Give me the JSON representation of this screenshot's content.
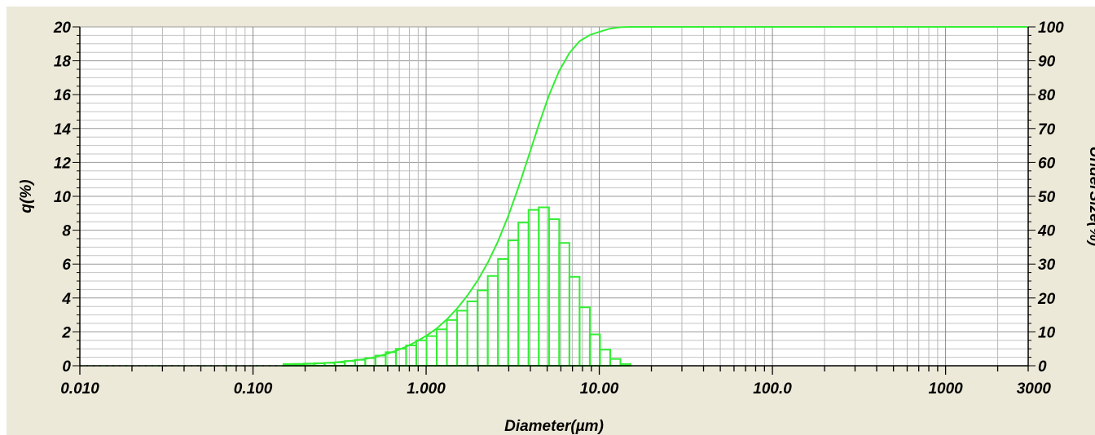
{
  "chart_data": {
    "type": "bar",
    "xlabel": "Diameter(µm)",
    "ylabel": "q(%)",
    "y2label": "UnderSize(%)",
    "xscale": "log",
    "xlim": [
      0.01,
      3000
    ],
    "ylim": [
      0,
      20
    ],
    "y2lim": [
      0,
      100
    ],
    "xticks": [
      {
        "value": 0.01,
        "label": "0.010"
      },
      {
        "value": 0.1,
        "label": "0.100"
      },
      {
        "value": 1,
        "label": "1.000"
      },
      {
        "value": 10,
        "label": "10.00"
      },
      {
        "value": 100,
        "label": "100.0"
      },
      {
        "value": 1000,
        "label": "1000"
      },
      {
        "value": 3000,
        "label": "3000"
      }
    ],
    "yticks": [
      {
        "value": 0,
        "label": "0"
      },
      {
        "value": 2,
        "label": "2"
      },
      {
        "value": 4,
        "label": "4"
      },
      {
        "value": 6,
        "label": "6"
      },
      {
        "value": 8,
        "label": "8"
      },
      {
        "value": 10,
        "label": "10"
      },
      {
        "value": 12,
        "label": "12"
      },
      {
        "value": 14,
        "label": "14"
      },
      {
        "value": 16,
        "label": "16"
      },
      {
        "value": 18,
        "label": "18"
      },
      {
        "value": 20,
        "label": "20"
      }
    ],
    "y2ticks": [
      {
        "value": 0,
        "label": "0"
      },
      {
        "value": 10,
        "label": "10"
      },
      {
        "value": 20,
        "label": "20"
      },
      {
        "value": 30,
        "label": "30"
      },
      {
        "value": 40,
        "label": "40"
      },
      {
        "value": 50,
        "label": "50"
      },
      {
        "value": 60,
        "label": "60"
      },
      {
        "value": 70,
        "label": "70"
      },
      {
        "value": 80,
        "label": "80"
      },
      {
        "value": 90,
        "label": "90"
      },
      {
        "value": 100,
        "label": "100"
      }
    ],
    "grid": true,
    "series": [
      {
        "type": "histogram",
        "axis": "left",
        "color": "#33ee33",
        "bins": [
          {
            "lo": 0.15,
            "hi": 0.172,
            "q": 0.1
          },
          {
            "lo": 0.172,
            "hi": 0.197,
            "q": 0.11
          },
          {
            "lo": 0.197,
            "hi": 0.226,
            "q": 0.13
          },
          {
            "lo": 0.226,
            "hi": 0.259,
            "q": 0.15
          },
          {
            "lo": 0.259,
            "hi": 0.296,
            "q": 0.17
          },
          {
            "lo": 0.296,
            "hi": 0.339,
            "q": 0.2
          },
          {
            "lo": 0.339,
            "hi": 0.389,
            "q": 0.28
          },
          {
            "lo": 0.389,
            "hi": 0.445,
            "q": 0.35
          },
          {
            "lo": 0.445,
            "hi": 0.51,
            "q": 0.45
          },
          {
            "lo": 0.51,
            "hi": 0.584,
            "q": 0.6
          },
          {
            "lo": 0.584,
            "hi": 0.669,
            "q": 0.8
          },
          {
            "lo": 0.669,
            "hi": 0.766,
            "q": 1.0
          },
          {
            "lo": 0.766,
            "hi": 0.877,
            "q": 1.2
          },
          {
            "lo": 0.877,
            "hi": 1.005,
            "q": 1.5
          },
          {
            "lo": 1.005,
            "hi": 1.151,
            "q": 1.75
          },
          {
            "lo": 1.151,
            "hi": 1.318,
            "q": 2.15
          },
          {
            "lo": 1.318,
            "hi": 1.51,
            "q": 2.7
          },
          {
            "lo": 1.51,
            "hi": 1.729,
            "q": 3.25
          },
          {
            "lo": 1.729,
            "hi": 1.981,
            "q": 3.8
          },
          {
            "lo": 1.981,
            "hi": 2.269,
            "q": 4.45
          },
          {
            "lo": 2.269,
            "hi": 2.599,
            "q": 5.3
          },
          {
            "lo": 2.599,
            "hi": 2.976,
            "q": 6.3
          },
          {
            "lo": 2.976,
            "hi": 3.409,
            "q": 7.4
          },
          {
            "lo": 3.409,
            "hi": 3.905,
            "q": 8.45
          },
          {
            "lo": 3.905,
            "hi": 4.472,
            "q": 9.2
          },
          {
            "lo": 4.472,
            "hi": 5.122,
            "q": 9.35
          },
          {
            "lo": 5.122,
            "hi": 5.867,
            "q": 8.65
          },
          {
            "lo": 5.867,
            "hi": 6.72,
            "q": 7.25
          },
          {
            "lo": 6.72,
            "hi": 7.696,
            "q": 5.25
          },
          {
            "lo": 7.696,
            "hi": 8.815,
            "q": 3.45
          },
          {
            "lo": 8.815,
            "hi": 10.097,
            "q": 1.85
          },
          {
            "lo": 10.097,
            "hi": 11.565,
            "q": 0.95
          },
          {
            "lo": 11.565,
            "hi": 13.245,
            "q": 0.4
          },
          {
            "lo": 13.245,
            "hi": 15.17,
            "q": 0.1
          }
        ]
      },
      {
        "type": "line",
        "axis": "right",
        "color": "#33ee33",
        "x": [
          0.15,
          0.172,
          0.197,
          0.226,
          0.259,
          0.296,
          0.339,
          0.389,
          0.445,
          0.51,
          0.584,
          0.669,
          0.766,
          0.877,
          1.005,
          1.151,
          1.318,
          1.51,
          1.729,
          1.981,
          2.269,
          2.599,
          2.976,
          3.409,
          3.905,
          4.472,
          5.122,
          5.867,
          6.72,
          7.696,
          8.815,
          10.097,
          11.565,
          13.245,
          15.17,
          3000
        ],
        "y": [
          0.3,
          0.4,
          0.5,
          0.6,
          0.8,
          1.0,
          1.3,
          1.6,
          2.0,
          2.6,
          3.4,
          4.4,
          5.6,
          7.1,
          8.9,
          11.0,
          13.7,
          16.9,
          20.7,
          25.1,
          30.4,
          36.7,
          44.1,
          52.6,
          61.8,
          71.1,
          79.8,
          87.0,
          92.3,
          95.8,
          97.6,
          98.6,
          99.5,
          99.9,
          100.0,
          100.0
        ]
      },
      {
        "type": "baseline",
        "axis": "left",
        "color": "#33ee33",
        "x": [
          0.01,
          0.15
        ],
        "y": [
          0,
          0
        ]
      }
    ]
  }
}
